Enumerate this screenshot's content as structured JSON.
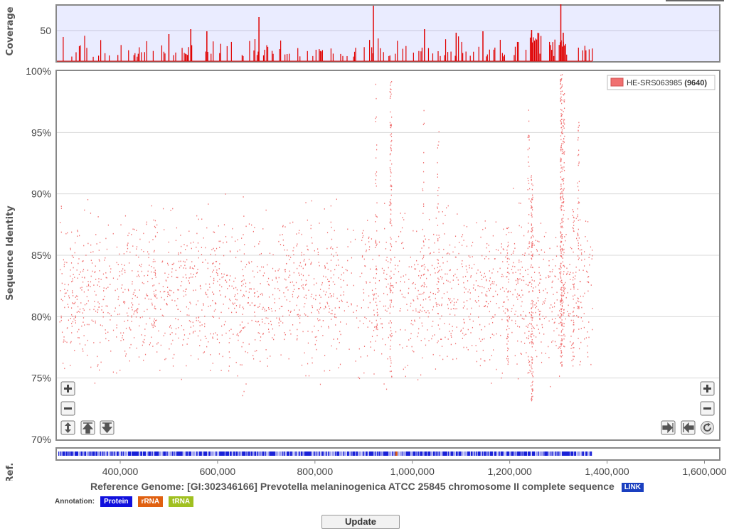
{
  "chart_data": {
    "type": "scatter",
    "coverage_panel": {
      "ylabel": "Coverage",
      "ytick": 50,
      "bar_color": "#e00000",
      "background": "#eaecff"
    },
    "identity_panel": {
      "ylabel": "Sequence Identity",
      "yticks": [
        "100%",
        "95%",
        "90%",
        "85%",
        "80%",
        "75%",
        "70%"
      ],
      "ylim": [
        70,
        100
      ],
      "series": [
        {
          "name": "HE-SRS063985",
          "count": "(9640)",
          "color": "#f07070"
        }
      ]
    },
    "xaxis": {
      "ticks": [
        "400,000",
        "600,000",
        "800,000",
        "1,000,000",
        "1,200,000",
        "1,400,000",
        "1,600,000"
      ],
      "tick_values": [
        400000,
        600000,
        800000,
        1000000,
        1200000,
        1400000,
        1600000
      ],
      "xlim": [
        270000,
        1630000
      ],
      "data_end": 1370000
    },
    "ref_panel": {
      "label": "Ref.",
      "color": "#1a22d8"
    },
    "legend_position": "top-right"
  },
  "reference": {
    "title": "Reference Genome: [GI:302346166] Prevotella melaninogenica ATCC 25845 chromosome II complete sequence",
    "link_label": "LINK"
  },
  "annotation": {
    "label": "Annotation:",
    "items": [
      {
        "label": "Protein",
        "color": "#1010dd"
      },
      {
        "label": "rRNA",
        "color": "#e06010"
      },
      {
        "label": "tRNA",
        "color": "#a0c020"
      }
    ]
  },
  "controls": {
    "update_label": "Update"
  }
}
